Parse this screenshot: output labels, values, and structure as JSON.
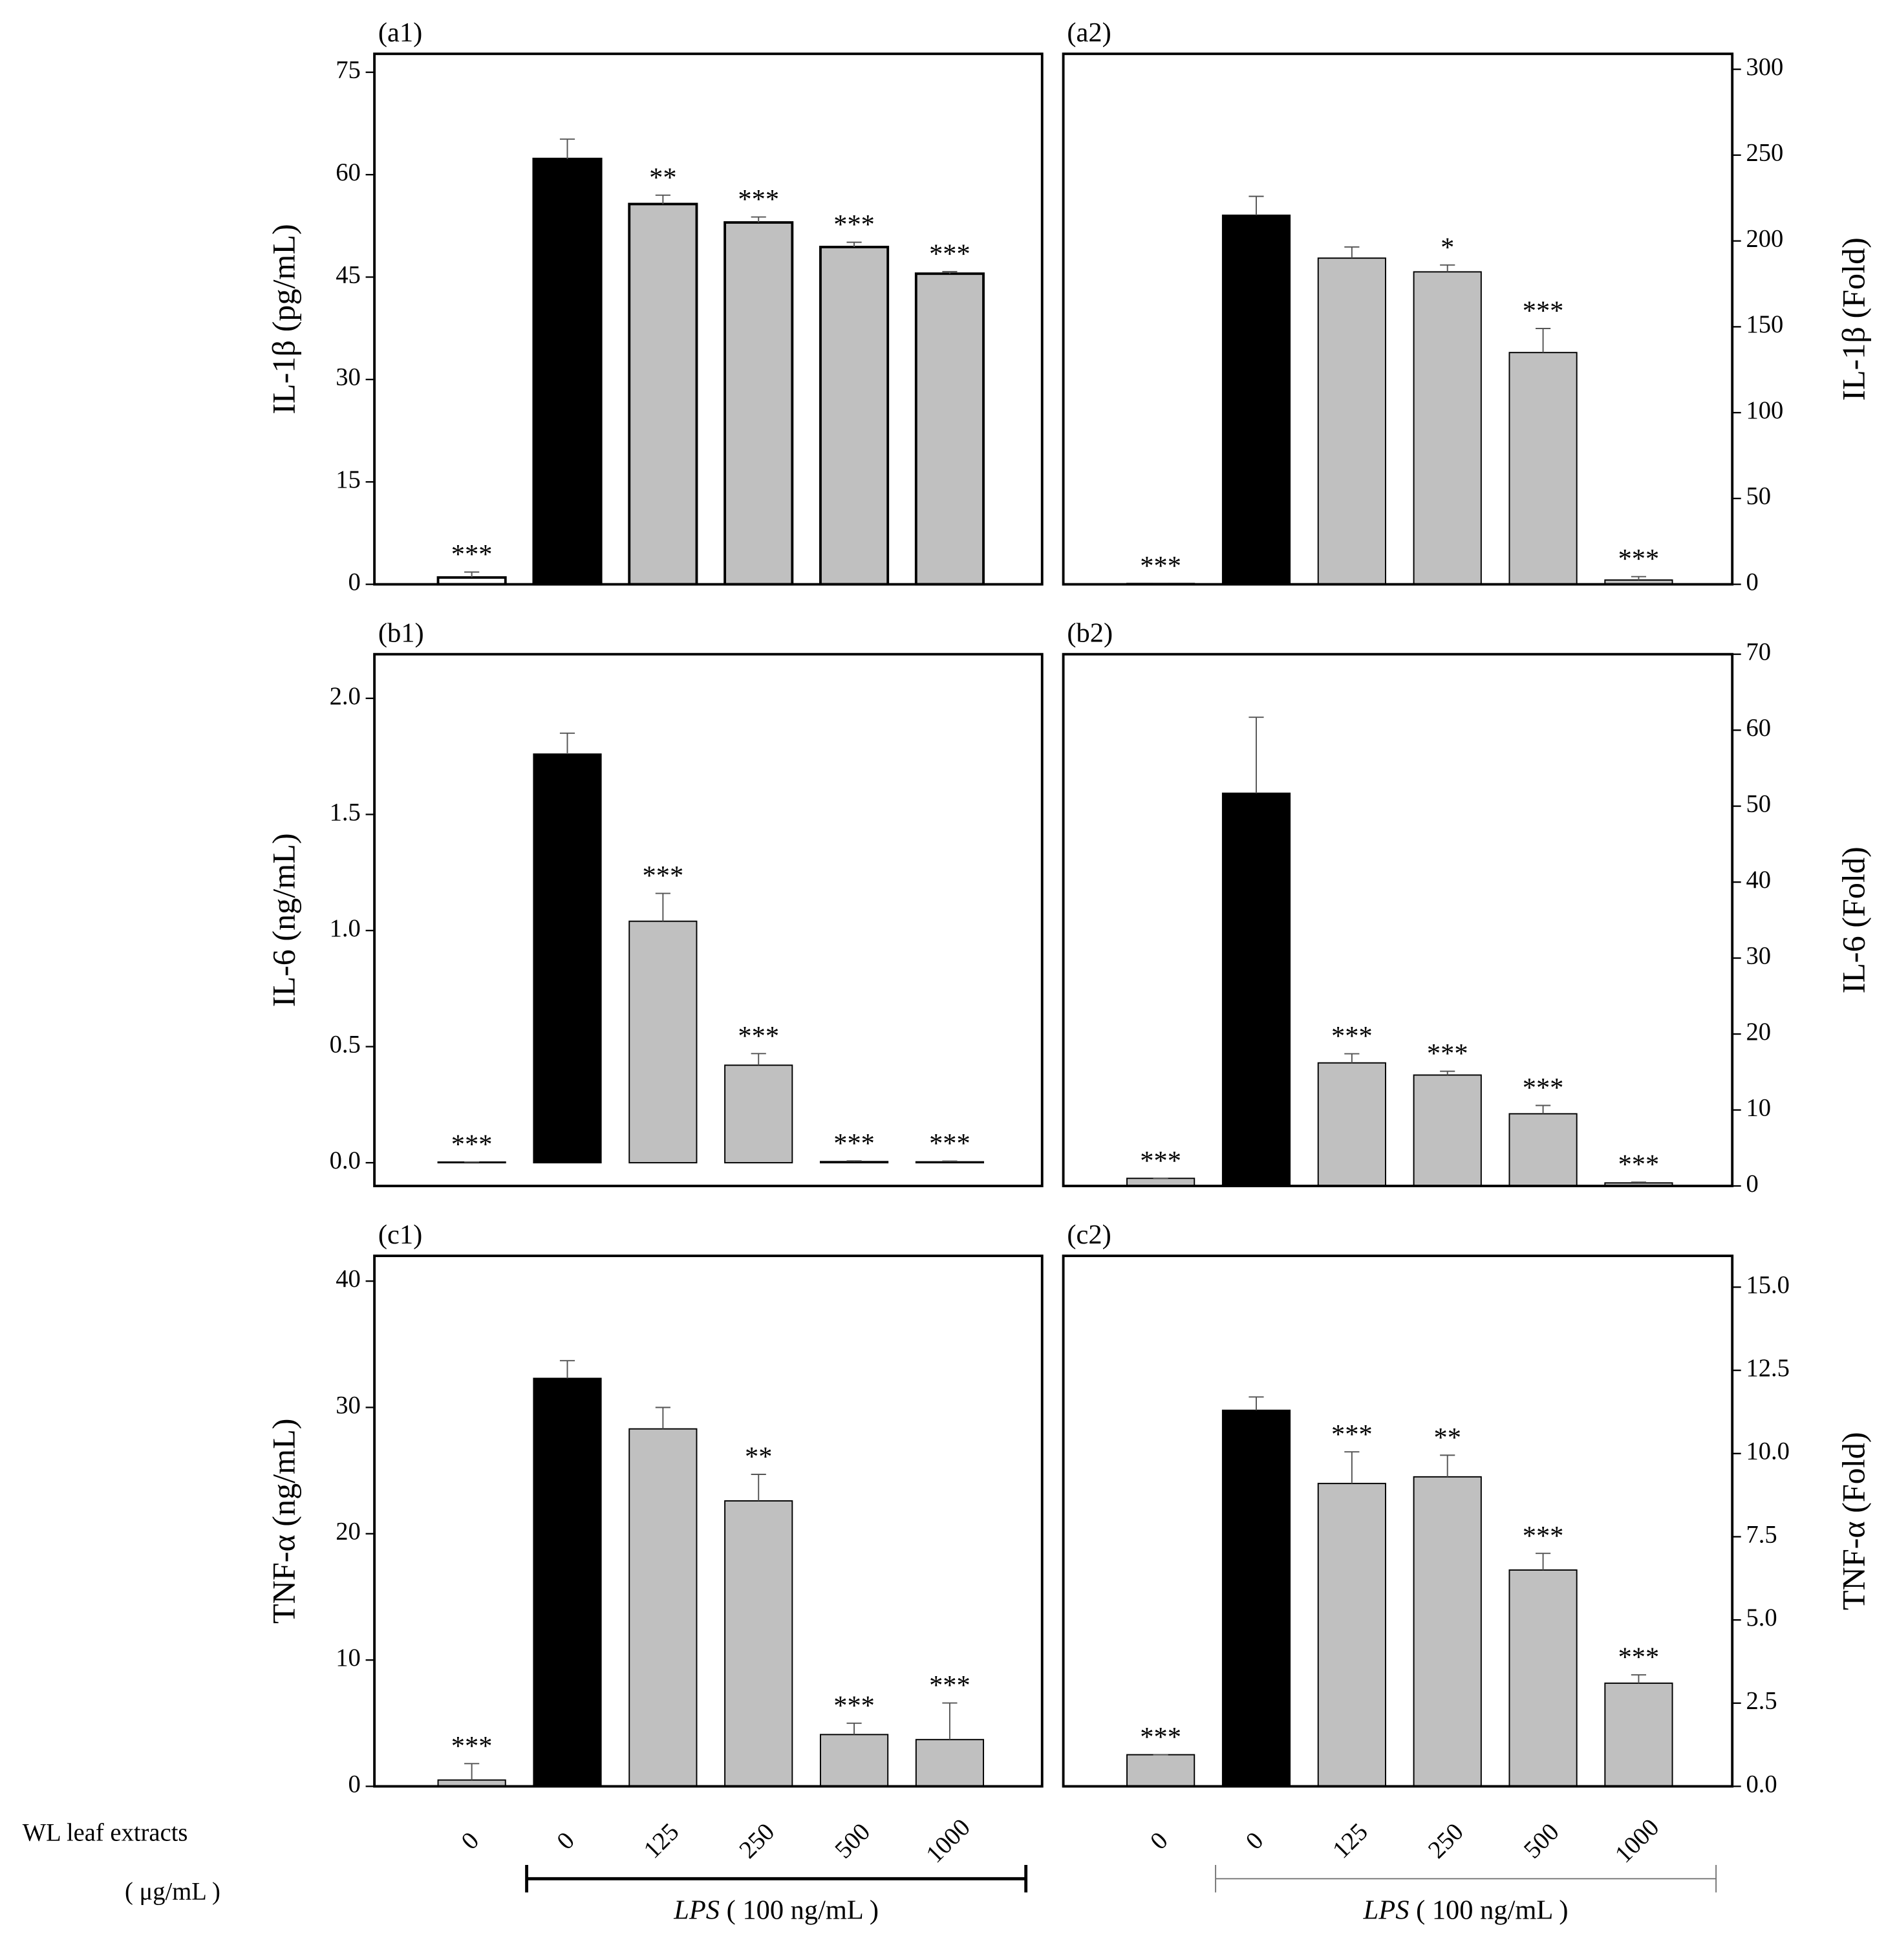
{
  "row_label": {
    "title": "WL leaf extracts",
    "unit": "( μg/mL )"
  },
  "chart_data": [
    {
      "type": "bar",
      "panel_label": "(a1)",
      "ylabel": "IL-1β (pg/mL)",
      "yaxis_side": "left",
      "values": [
        1.0,
        62.3,
        55.7,
        53.0,
        49.4,
        45.5
      ],
      "errors": [
        0.8,
        2.9,
        1.3,
        0.8,
        0.7,
        0.3
      ],
      "annotations": [
        "***",
        null,
        "**",
        "***",
        "***",
        "***"
      ],
      "colors": [
        "#ffffff",
        "#000000",
        "#c0c0c0",
        "#c0c0c0",
        "#c0c0c0",
        "#c0c0c0"
      ],
      "ylim": [
        0,
        77.7
      ],
      "yticks": [
        0,
        15,
        30,
        45,
        60,
        75
      ]
    },
    {
      "type": "bar",
      "panel_label": "(a2)",
      "ylabel": "IL-1β (Fold)",
      "yaxis_side": "right",
      "values": [
        0.5,
        215,
        190,
        182,
        135,
        2.5
      ],
      "errors": [
        0,
        11,
        6.5,
        4,
        14,
        2
      ],
      "annotations": [
        "***",
        null,
        null,
        "*",
        "***",
        "***"
      ],
      "colors": [
        "#c0c0c0",
        "#000000",
        "#c0c0c0",
        "#c0c0c0",
        "#c0c0c0",
        "#c0c0c0"
      ],
      "ylim": [
        0,
        309
      ],
      "yticks": [
        0,
        50,
        100,
        150,
        200,
        250,
        300
      ]
    },
    {
      "type": "bar",
      "panel_label": "(b1)",
      "ylabel": "IL-6 (ng/mL)",
      "yaxis_side": "left",
      "values": [
        0.003,
        1.76,
        1.04,
        0.42,
        0.005,
        0.004
      ],
      "errors": [
        0,
        0.09,
        0.12,
        0.05,
        0.003,
        0.003
      ],
      "annotations": [
        "***",
        null,
        "***",
        "***",
        "***",
        "***"
      ],
      "colors": [
        "#c0c0c0",
        "#000000",
        "#c0c0c0",
        "#c0c0c0",
        "#c0c0c0",
        "#c0c0c0"
      ],
      "ylim": [
        -0.1,
        2.19
      ],
      "yticks": [
        {
          "value": 0,
          "label": "0.0"
        },
        0.5,
        {
          "value": 1,
          "label": "1.0"
        },
        1.5,
        {
          "value": 2,
          "label": "2.0"
        }
      ]
    },
    {
      "type": "bar",
      "panel_label": "(b2)",
      "ylabel": "IL-6 (Fold)",
      "yaxis_side": "right",
      "values": [
        1.0,
        51.7,
        16.2,
        14.6,
        9.5,
        0.4
      ],
      "errors": [
        0,
        10,
        1.2,
        0.5,
        1.1,
        0.1
      ],
      "annotations": [
        "***",
        null,
        "***",
        "***",
        "***",
        "***"
      ],
      "colors": [
        "#c0c0c0",
        "#000000",
        "#c0c0c0",
        "#c0c0c0",
        "#c0c0c0",
        "#c0c0c0"
      ],
      "ylim": [
        0,
        70
      ],
      "yticks": [
        0,
        10,
        20,
        30,
        40,
        50,
        60,
        70
      ]
    },
    {
      "type": "bar",
      "panel_label": "(c1)",
      "ylabel": "TNF-α (ng/mL)",
      "yaxis_side": "left",
      "categories": [
        "0",
        "0",
        "125",
        "250",
        "500",
        "1000"
      ],
      "values": [
        0.5,
        32.3,
        28.3,
        22.6,
        4.1,
        3.7
      ],
      "errors": [
        1.3,
        1.4,
        1.7,
        2.1,
        0.9,
        2.9
      ],
      "annotations": [
        "***",
        null,
        null,
        "**",
        "***",
        "***"
      ],
      "colors": [
        "#c0c0c0",
        "#000000",
        "#c0c0c0",
        "#c0c0c0",
        "#c0c0c0",
        "#c0c0c0"
      ],
      "ylim": [
        0,
        42
      ],
      "yticks": [
        0,
        10,
        20,
        30,
        40
      ],
      "group_name": "LPS",
      "group_dose": "( 100 ng/mL )"
    },
    {
      "type": "bar",
      "panel_label": "(c2)",
      "ylabel": "TNF-α (Fold)",
      "yaxis_side": "right",
      "categories": [
        "0",
        "0",
        "125",
        "250",
        "500",
        "1000"
      ],
      "values": [
        0.95,
        11.3,
        9.1,
        9.3,
        6.5,
        3.1
      ],
      "errors": [
        0,
        0.4,
        0.95,
        0.65,
        0.5,
        0.25
      ],
      "annotations": [
        "***",
        null,
        "***",
        "**",
        "***",
        "***"
      ],
      "colors": [
        "#c0c0c0",
        "#000000",
        "#c0c0c0",
        "#c0c0c0",
        "#c0c0c0",
        "#c0c0c0"
      ],
      "ylim": [
        0,
        15.94
      ],
      "yticks": [
        {
          "value": 0,
          "label": "0.0"
        },
        2.5,
        {
          "value": 5,
          "label": "5.0"
        },
        7.5,
        {
          "value": 10,
          "label": "10.0"
        },
        12.5,
        {
          "value": 15,
          "label": "15.0"
        }
      ],
      "group_name": "LPS",
      "group_dose": "( 100 ng/mL )"
    }
  ]
}
